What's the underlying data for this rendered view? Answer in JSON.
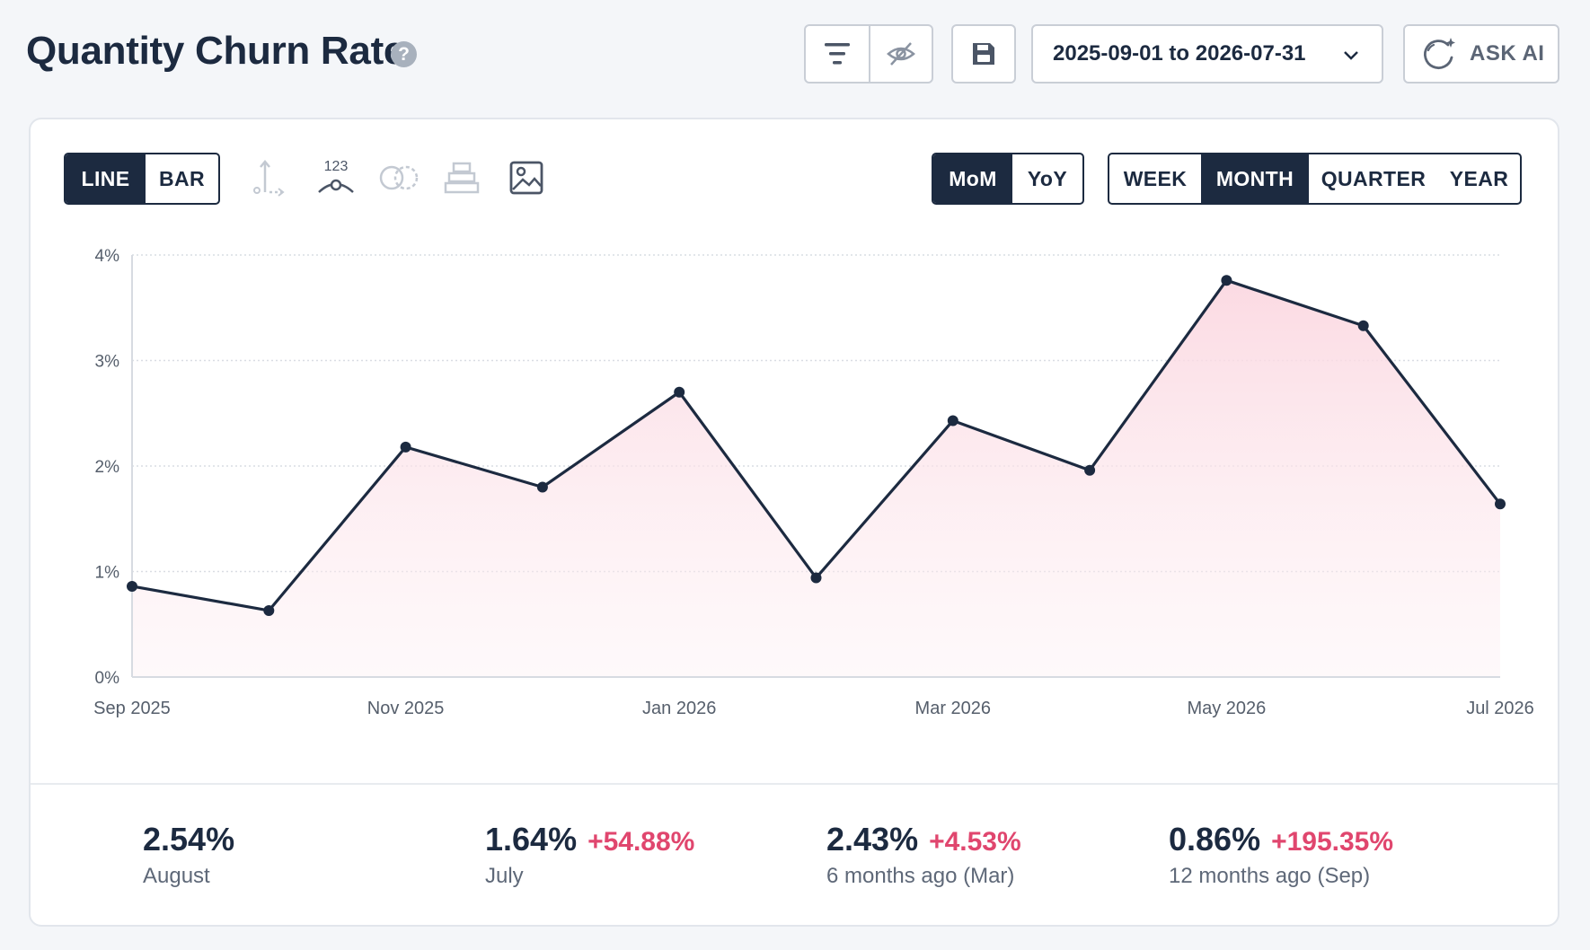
{
  "header": {
    "title": "Quantity Churn Rate",
    "help_glyph": "?",
    "date_range": "2025-09-01 to 2026-07-31",
    "ask_ai_label": "ASK AI",
    "icons": [
      "filter-icon",
      "eye-off-icon",
      "save-icon",
      "chevron-down-icon",
      "ai-sparkle-icon"
    ]
  },
  "controls": {
    "chart_type": {
      "options": [
        "LINE",
        "BAR"
      ],
      "selected": "LINE"
    },
    "comparison": {
      "options": [
        "MoM",
        "YoY"
      ],
      "selected": "MoM"
    },
    "period": {
      "options": [
        "WEEK",
        "MONTH",
        "QUARTER",
        "YEAR"
      ],
      "selected": "MONTH"
    },
    "tool_label_123": "123",
    "tool_icons": [
      "axis-icon",
      "data-labels-icon",
      "compare-icon",
      "stack-icon",
      "image-icon"
    ]
  },
  "chart_data": {
    "type": "area",
    "x": [
      "Sep 2025",
      "Oct 2025",
      "Nov 2025",
      "Dec 2025",
      "Jan 2026",
      "Feb 2026",
      "Mar 2026",
      "Apr 2026",
      "May 2026",
      "Jun 2026",
      "Jul 2026"
    ],
    "x_tick_labels": [
      "Sep 2025",
      "Nov 2025",
      "Jan 2026",
      "Mar 2026",
      "May 2026",
      "Jul 2026"
    ],
    "series": [
      {
        "values": [
          0.86,
          0.63,
          2.18,
          1.8,
          2.7,
          0.94,
          2.43,
          1.96,
          3.76,
          3.33,
          1.64
        ]
      }
    ],
    "y_tick_labels": [
      "0%",
      "1%",
      "2%",
      "3%",
      "4%"
    ],
    "ylim": [
      0,
      4
    ],
    "grid": true,
    "line_color": "#1c2a40",
    "fill_color": "#fde3e9"
  },
  "stats": [
    {
      "value": "2.54%",
      "change": "",
      "label": "August"
    },
    {
      "value": "1.64%",
      "change": "+54.88%",
      "label": "July"
    },
    {
      "value": "2.43%",
      "change": "+4.53%",
      "label": "6 months ago (Mar)"
    },
    {
      "value": "0.86%",
      "change": "+195.35%",
      "label": "12 months ago (Sep)"
    }
  ]
}
